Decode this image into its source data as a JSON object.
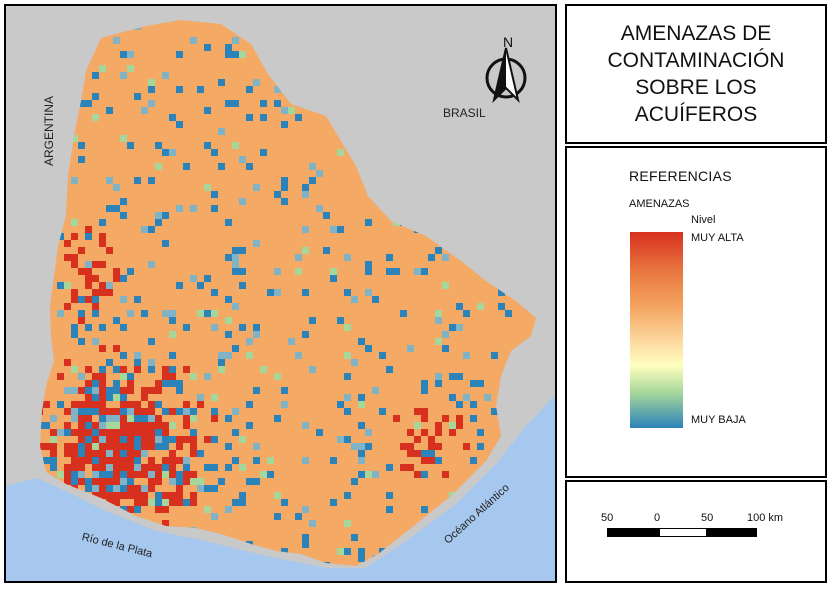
{
  "title": "AMENAZAS DE CONTAMINACIÓN SOBRE LOS ACUÍFEROS",
  "legend": {
    "heading": "REFERENCIAS",
    "subheading": "AMENAZAS",
    "scale_title": "Nivel",
    "high_label": "MUY ALTA",
    "low_label": "MUY BAJA",
    "colors": {
      "very_high": "#d7301f",
      "high": "#f4a460",
      "mid": "#ffffbf",
      "low_mid": "#a6d79a",
      "very_low": "#2b83ba"
    }
  },
  "map": {
    "labels": {
      "argentina": "ARGENTINA",
      "brasil": "BRASIL",
      "rio_plata": "Río de la Plata",
      "oceano": "Océano Atlántico"
    },
    "north": "N",
    "colors": {
      "land_outside": "#c9c9c9",
      "water": "#a6c8ee",
      "base": "#f4a965"
    }
  },
  "scale_bar": {
    "labels": [
      "50",
      "0",
      "50",
      "100 km"
    ]
  }
}
